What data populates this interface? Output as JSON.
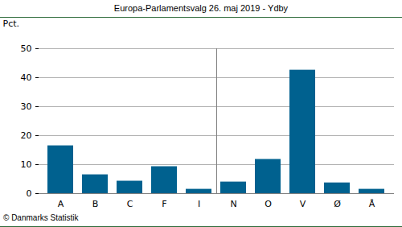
{
  "chart_data": {
    "type": "bar",
    "title": "Europa-Parlamentsvalg 26. maj 2019 - Ydby",
    "y_label": "Pct.",
    "caption": "© Danmarks Statistik",
    "categories": [
      "A",
      "B",
      "C",
      "F",
      "I",
      "N",
      "O",
      "V",
      "Ø",
      "Å"
    ],
    "values": [
      16.5,
      6.5,
      4.3,
      9.3,
      1.5,
      4.0,
      11.8,
      42.6,
      3.7,
      1.5
    ],
    "color": "#00618f",
    "ylim": [
      0,
      50
    ],
    "yticks": [
      0,
      10,
      20,
      30,
      40,
      50
    ],
    "grid": true
  }
}
